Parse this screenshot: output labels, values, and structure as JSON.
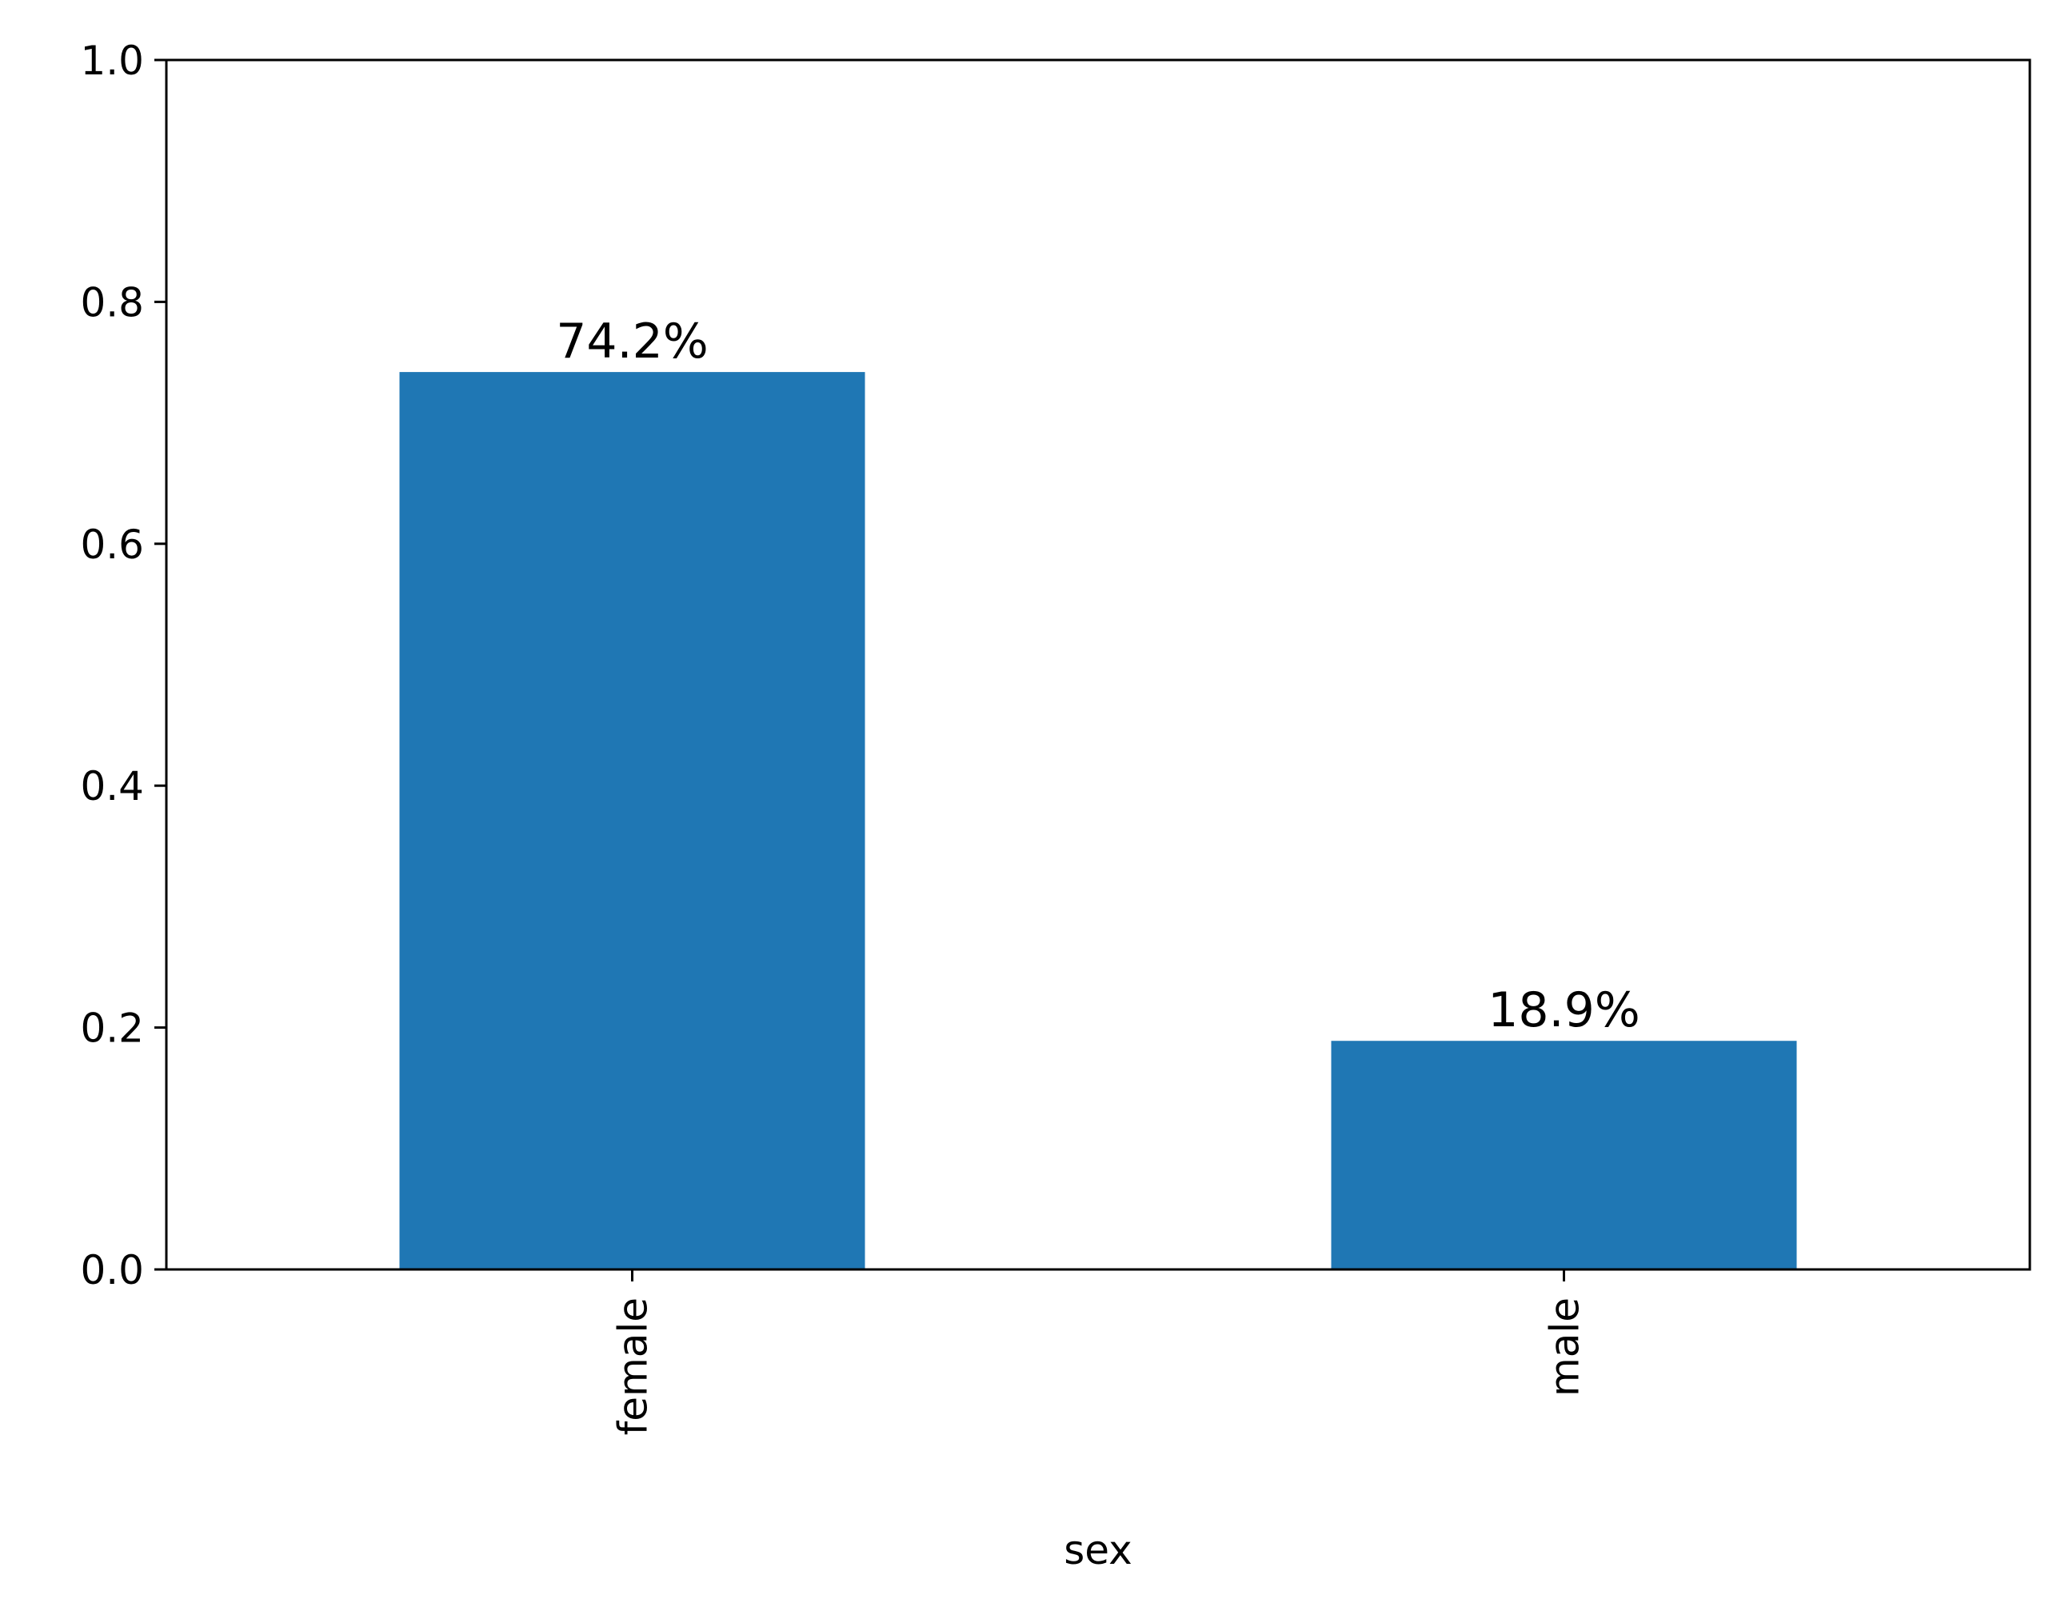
{
  "chart_data": {
    "type": "bar",
    "categories": [
      "female",
      "male"
    ],
    "values": [
      0.742,
      0.189
    ],
    "data_labels": [
      "74.2%",
      "18.9%"
    ],
    "xlabel": "sex",
    "ylabel": "",
    "ylim": [
      0,
      1.0
    ],
    "yticks": [
      0.0,
      0.2,
      0.4,
      0.6,
      0.8,
      1.0
    ],
    "ytick_labels": [
      "0.0",
      "0.2",
      "0.4",
      "0.6",
      "0.8",
      "1.0"
    ],
    "grid": false,
    "legend": "none",
    "bar_color": "#1f77b4"
  }
}
